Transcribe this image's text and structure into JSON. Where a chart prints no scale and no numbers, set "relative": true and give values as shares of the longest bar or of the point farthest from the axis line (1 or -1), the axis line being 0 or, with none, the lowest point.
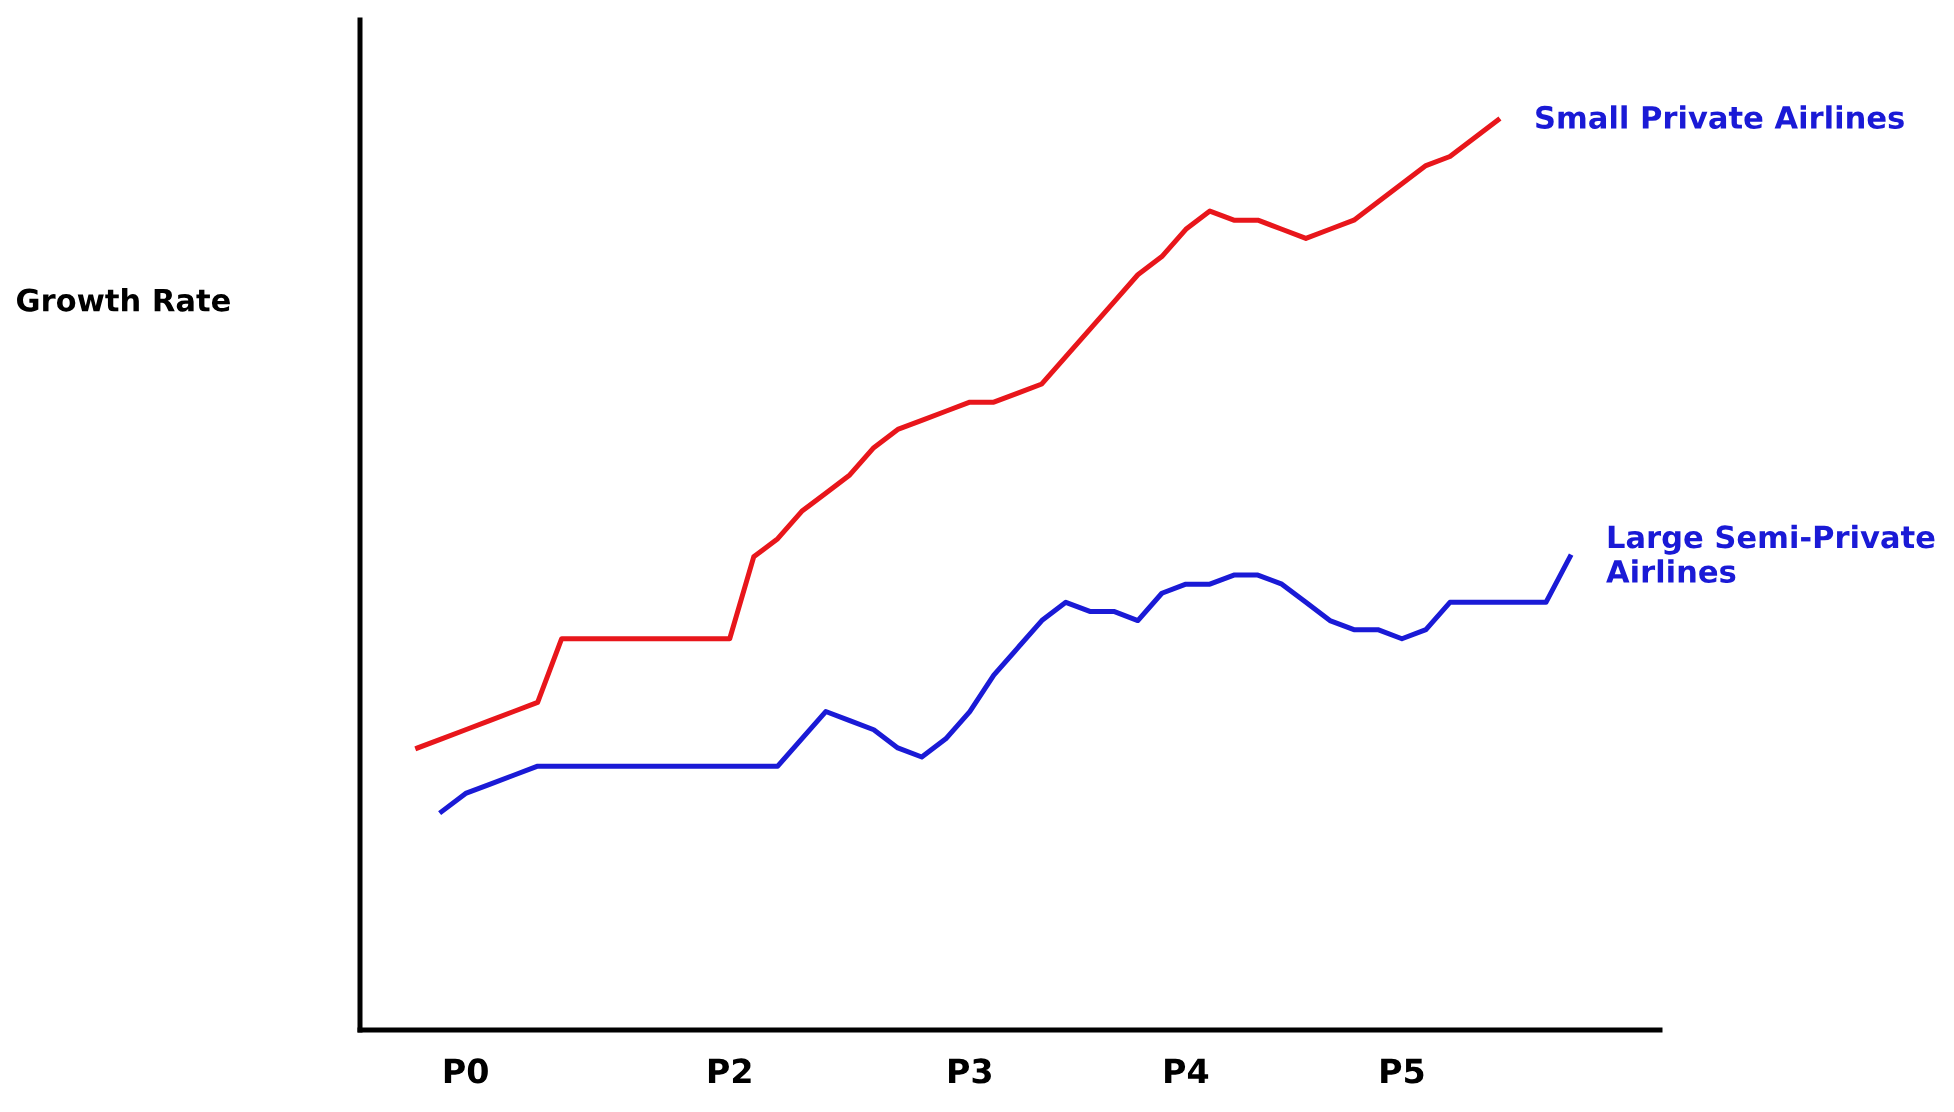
{
  "chart_data": {
    "type": "line",
    "annotations": [
      "Growth Rate"
    ],
    "relative": true,
    "tick_labels": "x",
    "grid": false,
    "legend": false,
    "marker": "none",
    "line_style": "solid",
    "categories": [
      null,
      null,
      "P0",
      null,
      null,
      null,
      null,
      null,
      null,
      null,
      null,
      null,
      null,
      "P2",
      null,
      null,
      null,
      null,
      null,
      null,
      null,
      null,
      null,
      "P3",
      null,
      null,
      null,
      null,
      null,
      null,
      null,
      null,
      "P4",
      null,
      null,
      null,
      null,
      null,
      null,
      null,
      null,
      "P5",
      null,
      null,
      null,
      null,
      null,
      null,
      null
    ],
    "series": [
      {
        "name": "Small Private Airlines",
        "color": "#e8161b",
        "values": [
          0.31,
          0.32,
          0.33,
          0.34,
          0.35,
          0.36,
          0.43,
          0.43,
          0.43,
          0.43,
          0.43,
          0.43,
          0.43,
          0.43,
          0.52,
          0.54,
          0.57,
          0.59,
          0.61,
          0.64,
          0.66,
          0.67,
          0.68,
          0.69,
          0.69,
          0.7,
          0.71,
          0.74,
          0.77,
          0.8,
          0.83,
          0.85,
          0.88,
          0.9,
          0.89,
          0.89,
          0.88,
          0.87,
          0.88,
          0.89,
          0.91,
          0.93,
          0.95,
          0.96,
          0.98,
          1.0,
          null,
          null,
          null
        ]
      },
      {
        "name": "Large Semi-Private Airlines",
        "color": "#1a1ad6",
        "values": [
          null,
          0.24,
          0.26,
          0.27,
          0.28,
          0.29,
          0.29,
          0.29,
          0.29,
          0.29,
          0.29,
          0.29,
          0.29,
          0.29,
          0.29,
          0.29,
          0.32,
          0.35,
          0.34,
          0.33,
          0.31,
          0.3,
          0.32,
          0.35,
          0.39,
          0.42,
          0.45,
          0.47,
          0.46,
          0.46,
          0.45,
          0.48,
          0.49,
          0.49,
          0.5,
          0.5,
          0.49,
          0.47,
          0.45,
          0.44,
          0.44,
          0.43,
          0.44,
          0.47,
          0.47,
          0.47,
          0.47,
          0.47,
          0.52
        ]
      }
    ]
  }
}
